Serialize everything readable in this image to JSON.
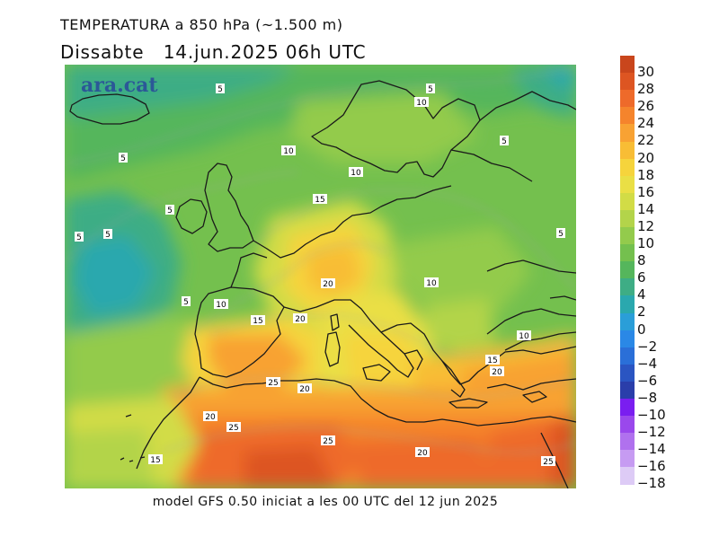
{
  "header": {
    "title": "TEMPERATURA a 850 hPa (~1.500 m)",
    "subtitle": "Dissabte   14.jun.2025 06h UTC"
  },
  "brand": "ara.cat",
  "footer": "model GFS 0.50 iniciat a les 00 UTC del 12 jun 2025",
  "legend": {
    "levels": [
      {
        "label": "30",
        "color": "#c9461c"
      },
      {
        "label": "28",
        "color": "#dd5522"
      },
      {
        "label": "26",
        "color": "#ee6a2a"
      },
      {
        "label": "24",
        "color": "#f5842c"
      },
      {
        "label": "22",
        "color": "#f8a233"
      },
      {
        "label": "20",
        "color": "#f8bd35"
      },
      {
        "label": "18",
        "color": "#f6d43c"
      },
      {
        "label": "16",
        "color": "#eadf45"
      },
      {
        "label": "14",
        "color": "#d2dc46"
      },
      {
        "label": "12",
        "color": "#b3d44a"
      },
      {
        "label": "10",
        "color": "#93cb4c"
      },
      {
        "label": "8",
        "color": "#74c04e"
      },
      {
        "label": "6",
        "color": "#55b65c"
      },
      {
        "label": "4",
        "color": "#3ead85"
      },
      {
        "label": "2",
        "color": "#2aa8ae"
      },
      {
        "label": "0",
        "color": "#2a9ed8"
      },
      {
        "label": "−2",
        "color": "#2a88e6"
      },
      {
        "label": "−4",
        "color": "#2a6fd8"
      },
      {
        "label": "−6",
        "color": "#2a55c2"
      },
      {
        "label": "−8",
        "color": "#2a3eaa"
      },
      {
        "label": "−10",
        "color": "#7a1ef0"
      },
      {
        "label": "−12",
        "color": "#9a48ec"
      },
      {
        "label": "−14",
        "color": "#b071ee"
      },
      {
        "label": "−16",
        "color": "#c69bf2"
      },
      {
        "label": "−18",
        "color": "#ddcbf6"
      }
    ]
  },
  "contour_labels": [
    "5",
    "10",
    "5",
    "10",
    "5",
    "10",
    "15",
    "5",
    "5",
    "5",
    "5",
    "10",
    "20",
    "10",
    "15",
    "20",
    "10",
    "15",
    "20",
    "25",
    "20",
    "20",
    "25",
    "25",
    "20",
    "15",
    "25"
  ]
}
